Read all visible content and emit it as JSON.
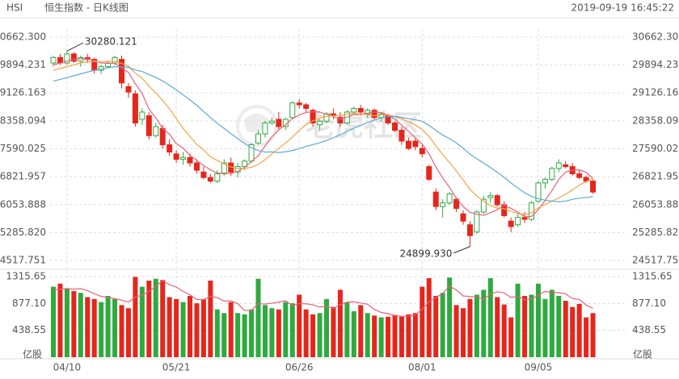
{
  "chart_data": {
    "type": "candlestick",
    "symbol": "HSI",
    "title": "恒生指数 - 日K线图",
    "timestamp": "2019-09-19 16:45:22",
    "watermark": "老虎社区",
    "volume_unit": "亿股",
    "up_color": "#2eaa3f",
    "down_color": "#e5261c",
    "grid": true,
    "categories": [
      null,
      null,
      "04/10",
      null,
      null,
      null,
      null,
      null,
      null,
      null,
      null,
      null,
      null,
      null,
      null,
      null,
      null,
      null,
      "05/21",
      null,
      null,
      null,
      null,
      null,
      null,
      null,
      null,
      null,
      null,
      null,
      null,
      null,
      null,
      null,
      null,
      null,
      "06/26",
      null,
      null,
      null,
      null,
      null,
      null,
      null,
      null,
      null,
      null,
      null,
      null,
      null,
      null,
      null,
      null,
      null,
      "08/01",
      null,
      null,
      null,
      null,
      null,
      null,
      null,
      null,
      null,
      null,
      null,
      null,
      null,
      null,
      null,
      null,
      "09/05",
      null,
      null,
      null,
      null,
      null,
      null,
      null,
      null
    ],
    "open": [
      29950,
      30100,
      29950,
      30200,
      30000,
      30100,
      30050,
      29750,
      29850,
      29950,
      30050,
      29300,
      29100,
      28400,
      28500,
      27950,
      28150,
      27700,
      27450,
      27300,
      27350,
      27200,
      26950,
      26800,
      26700,
      26900,
      27200,
      26950,
      27100,
      27250,
      27750,
      28000,
      28300,
      28400,
      28200,
      28450,
      28850,
      28800,
      28650,
      28250,
      28350,
      28550,
      28450,
      28300,
      28600,
      28700,
      28550,
      28650,
      28450,
      28500,
      28300,
      28100,
      27800,
      27800,
      27600,
      27100,
      26400,
      26000,
      26100,
      26200,
      25800,
      25500,
      25300,
      25850,
      26250,
      26300,
      26050,
      25600,
      25500,
      25700,
      25650,
      26150,
      26650,
      26750,
      27050,
      27150,
      27100,
      26900,
      26800,
      26700
    ],
    "high": [
      30150,
      30200,
      30280.121,
      30250,
      30150,
      30200,
      30100,
      29900,
      30000,
      30150,
      30150,
      29400,
      29200,
      28700,
      28600,
      28300,
      28250,
      27850,
      27550,
      27500,
      27450,
      27300,
      27100,
      26900,
      27000,
      27300,
      27350,
      27200,
      27300,
      27750,
      28100,
      28350,
      28450,
      28600,
      28450,
      28900,
      28950,
      28850,
      28700,
      28400,
      28600,
      28700,
      28600,
      28650,
      28750,
      28800,
      28700,
      28700,
      28600,
      28550,
      28350,
      28200,
      27900,
      27900,
      27700,
      27150,
      26500,
      26200,
      26400,
      26250,
      25900,
      25600,
      25900,
      26300,
      26400,
      26350,
      26150,
      25700,
      25800,
      25850,
      26150,
      26700,
      26800,
      27100,
      27300,
      27250,
      27200,
      27000,
      26850,
      26750
    ],
    "low": [
      29850,
      29900,
      29900,
      29950,
      29850,
      29950,
      29650,
      29650,
      29800,
      29900,
      29250,
      29000,
      28200,
      28250,
      27850,
      27900,
      27600,
      27400,
      27200,
      27150,
      27100,
      26900,
      26750,
      26650,
      26650,
      26850,
      26850,
      26800,
      27000,
      27200,
      27700,
      27900,
      28250,
      28100,
      28100,
      28400,
      28700,
      28600,
      28200,
      28100,
      28300,
      28400,
      28200,
      28250,
      28550,
      28500,
      28450,
      28400,
      28350,
      28250,
      28050,
      27700,
      27550,
      27550,
      27350,
      26700,
      25900,
      25700,
      26050,
      25850,
      25500,
      24899.93,
      25250,
      25800,
      26100,
      26000,
      25700,
      25300,
      25450,
      25550,
      25600,
      26100,
      26500,
      26700,
      26950,
      27050,
      26850,
      26750,
      26650,
      26350
    ],
    "close": [
      30100,
      29950,
      30200,
      30000,
      30100,
      30050,
      29750,
      29850,
      29950,
      30100,
      29400,
      29150,
      28300,
      28600,
      27950,
      28200,
      27700,
      27500,
      27300,
      27350,
      27200,
      27000,
      26800,
      26700,
      26900,
      27200,
      26950,
      27100,
      27250,
      27700,
      28000,
      28300,
      28350,
      28200,
      28400,
      28850,
      28800,
      28700,
      28300,
      28350,
      28550,
      28500,
      28300,
      28600,
      28700,
      28600,
      28650,
      28450,
      28550,
      28300,
      28100,
      27800,
      27600,
      27650,
      27450,
      26750,
      26000,
      26100,
      26350,
      25950,
      25600,
      25200,
      25850,
      26200,
      26300,
      26050,
      25750,
      25450,
      25700,
      25650,
      26100,
      26650,
      26750,
      27050,
      27200,
      27100,
      26900,
      26800,
      26700,
      26400
    ],
    "volume": [
      1150,
      1200,
      1120,
      1080,
      1050,
      980,
      950,
      900,
      1000,
      950,
      850,
      800,
      1310,
      1150,
      1250,
      1280,
      1260,
      980,
      950,
      900,
      1000,
      880,
      950,
      1250,
      780,
      720,
      900,
      720,
      700,
      780,
      1280,
      850,
      800,
      780,
      900,
      880,
      1020,
      780,
      700,
      720,
      950,
      820,
      1100,
      900,
      750,
      850,
      720,
      680,
      650,
      660,
      690,
      660,
      700,
      720,
      1150,
      1290,
      1000,
      1050,
      1300,
      850,
      800,
      950,
      1020,
      1100,
      1290,
      980,
      860,
      650,
      1200,
      1000,
      1020,
      1200,
      950,
      1100,
      1000,
      920,
      820,
      870,
      650,
      720
    ],
    "ma": [
      {
        "color": "#e8607a",
        "values": [
          29900,
          29950,
          30000,
          30050,
          30070,
          30060,
          30020,
          29950,
          29940,
          29940,
          29810,
          29690,
          29380,
          29110,
          28680,
          28440,
          28150,
          27990,
          27730,
          27610,
          27410,
          27270,
          27130,
          27010,
          26920,
          26920,
          26910,
          26970,
          27080,
          27240,
          27400,
          27670,
          27920,
          28110,
          28250,
          28420,
          28520,
          28590,
          28610,
          28600,
          28540,
          28480,
          28400,
          28460,
          28530,
          28540,
          28570,
          28600,
          28590,
          28510,
          28410,
          28240,
          28070,
          27890,
          27720,
          27450,
          27090,
          26790,
          26530,
          26230,
          26000,
          25840,
          25790,
          25760,
          25830,
          25920,
          26030,
          25950,
          25850,
          25720,
          25730,
          25910,
          26170,
          26440,
          26750,
          26950,
          27000,
          27010,
          26940,
          26780
        ]
      },
      {
        "color": "#f5a442",
        "values": [
          29750,
          29800,
          29850,
          29900,
          29950,
          29980,
          29990,
          29980,
          30000,
          30000,
          29940,
          29860,
          29670,
          29530,
          29310,
          29130,
          28920,
          28690,
          28420,
          28150,
          27930,
          27710,
          27560,
          27370,
          27270,
          27170,
          27090,
          27050,
          27050,
          27080,
          27160,
          27290,
          27450,
          27600,
          27750,
          27910,
          28100,
          28260,
          28360,
          28430,
          28480,
          28500,
          28500,
          28540,
          28570,
          28540,
          28530,
          28500,
          28530,
          28520,
          28480,
          28410,
          28340,
          28240,
          28120,
          27930,
          27670,
          27430,
          27210,
          26980,
          26730,
          26470,
          26290,
          26150,
          26030,
          25960,
          25940,
          25870,
          25810,
          25780,
          25830,
          25970,
          26060,
          26150,
          26240,
          26340,
          26460,
          26590,
          26690,
          26770
        ]
      },
      {
        "color": "#5aa9d8",
        "values": [
          29450,
          29500,
          29550,
          29600,
          29650,
          29700,
          29750,
          29780,
          29820,
          29850,
          29845,
          29830,
          29760,
          29715,
          29630,
          29555,
          29455,
          29335,
          29210,
          29075,
          28935,
          28785,
          28615,
          28450,
          28290,
          28150,
          28005,
          27870,
          27735,
          27615,
          27545,
          27500,
          27505,
          27485,
          27510,
          27540,
          27595,
          27655,
          27705,
          27755,
          27820,
          27895,
          27975,
          28070,
          28160,
          28225,
          28315,
          28380,
          28445,
          28475,
          28480,
          28455,
          28420,
          28390,
          28345,
          28235,
          28100,
          27965,
          27870,
          27750,
          27605,
          27440,
          27315,
          27195,
          27075,
          26945,
          26805,
          26650,
          26510,
          26380,
          26280,
          26220,
          26175,
          26150,
          26135,
          26150,
          26200,
          26230,
          26250,
          26275
        ]
      }
    ],
    "volume_ma": [
      {
        "color": "#e8607a",
        "values": [
          1100,
          1110,
          1120,
          1110,
          1120,
          1086,
          1036,
          992,
          976,
          956,
          930,
          900,
          982,
          1012,
          1072,
          1158,
          1250,
          1184,
          1144,
          1074,
          1018,
          942,
          936,
          996,
          972,
          916,
          920,
          874,
          764,
          764,
          876,
          866,
          882,
          898,
          922,
          842,
          876,
          872,
          856,
          820,
          834,
          794,
          858,
          898,
          904,
          884,
          864,
          780,
          730,
          712,
          680,
          668,
          672,
          686,
          784,
          904,
          972,
          1042,
          1158,
          1098,
          1000,
          990,
          984,
          944,
          1032,
          1068,
          1050,
          976,
          996,
          938,
          946,
          1014,
          1074,
          1054,
          1054,
          1034,
          958,
          942,
          852,
          796
        ]
      }
    ],
    "annotations": [
      {
        "text": "30280.121",
        "value": 30280.121
      },
      {
        "text": "24899.930",
        "value": 24899.93
      }
    ],
    "ylim": [
      24517.751,
      30662.3
    ],
    "yticks": [
      {
        "value": 24517.751,
        "label": "24517.751"
      },
      {
        "value": 25285.82,
        "label": "25285.820"
      },
      26053.888,
      26821.957,
      27590.025,
      28358.094,
      29126.163,
      29894.231,
      {
        "value": 30662.3,
        "label": "30662.300"
      }
    ],
    "y2lim": [
      0,
      1315.65
    ],
    "y2ticks": [
      438.55,
      {
        "value": 877.1,
        "label": "877.10"
      },
      1315.65
    ]
  }
}
